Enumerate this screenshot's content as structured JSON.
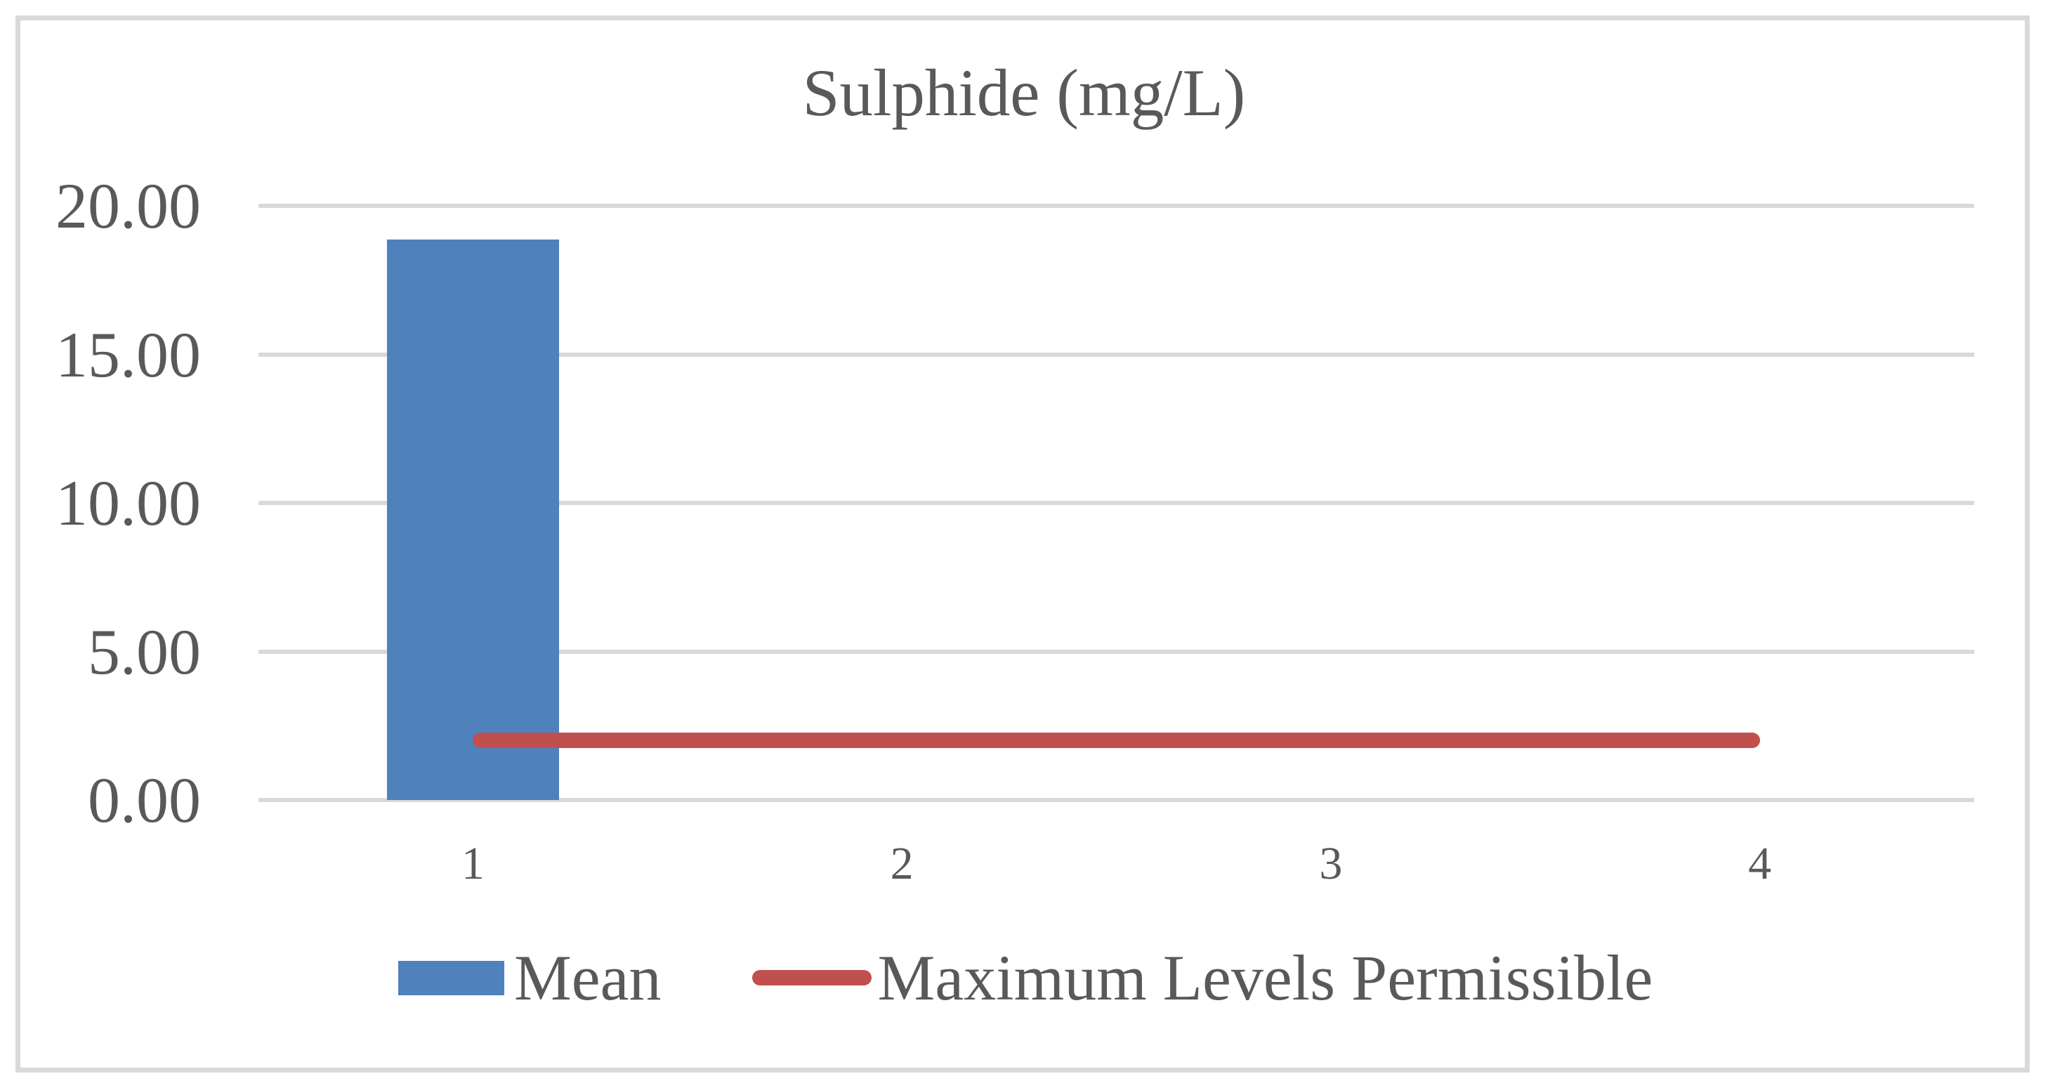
{
  "title": "Sulphide (mg/L)",
  "chart_data": {
    "type": "bar",
    "title": "Sulphide (mg/L)",
    "categories": [
      "1",
      "2",
      "3",
      "4"
    ],
    "series": [
      {
        "name": "Mean",
        "type": "bar",
        "color": "#4F81BD",
        "values": [
          18.87,
          null,
          null,
          null
        ]
      },
      {
        "name": "Maximum Levels Permissible",
        "type": "line",
        "color": "#C0504D",
        "values": [
          2,
          2,
          2,
          2
        ]
      }
    ],
    "xlabel": "",
    "ylabel": "",
    "ylim": [
      0,
      20
    ],
    "yticks": [
      {
        "value": 0,
        "label": "0.00"
      },
      {
        "value": 5,
        "label": "5.00"
      },
      {
        "value": 10,
        "label": "10.00"
      },
      {
        "value": 15,
        "label": "15.00"
      },
      {
        "value": 20,
        "label": "20.00"
      }
    ],
    "grid": true,
    "legend_position": "bottom"
  },
  "legend": {
    "items": [
      {
        "label": "Mean",
        "marker": "square",
        "color": "#4F81BD"
      },
      {
        "label": "Maximum Levels Permissible",
        "marker": "line",
        "color": "#C0504D"
      }
    ]
  },
  "colors": {
    "bar_blue": "#4F81BD",
    "line_red": "#C0504D",
    "gridline": "#D9D9D9",
    "border": "#D9D9D9",
    "text": "#595959",
    "background": "#FFFFFF"
  }
}
